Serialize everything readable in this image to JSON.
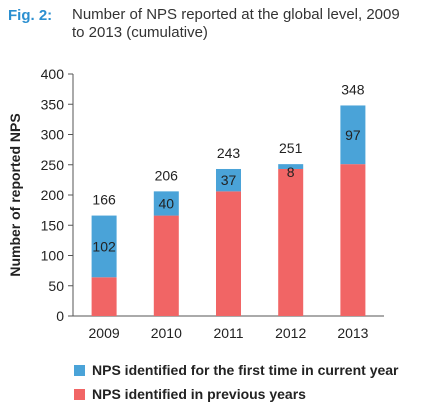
{
  "figure": {
    "label": "Fig. 2:",
    "title": "Number of NPS reported at the global level, 2009 to 2013 (cumulative)"
  },
  "colors": {
    "first_time": "#4aa3d8",
    "previous": "#f16565",
    "label_accent": "#2b8fd0"
  },
  "chart_data": {
    "type": "bar",
    "stacked": true,
    "title": "",
    "xlabel": "",
    "ylabel": "Number of reported NPS",
    "ylim": [
      0,
      400
    ],
    "yticks": [
      0,
      50,
      100,
      150,
      200,
      250,
      300,
      350,
      400
    ],
    "categories": [
      "2009",
      "2010",
      "2011",
      "2012",
      "2013"
    ],
    "series": [
      {
        "name": "NPS identified in previous years",
        "values": [
          64,
          166,
          206,
          243,
          251
        ]
      },
      {
        "name": "NPS identified for the first time in current year",
        "values": [
          102,
          40,
          37,
          8,
          97
        ]
      }
    ],
    "totals": [
      166,
      206,
      243,
      251,
      348
    ],
    "legend_position": "bottom"
  }
}
